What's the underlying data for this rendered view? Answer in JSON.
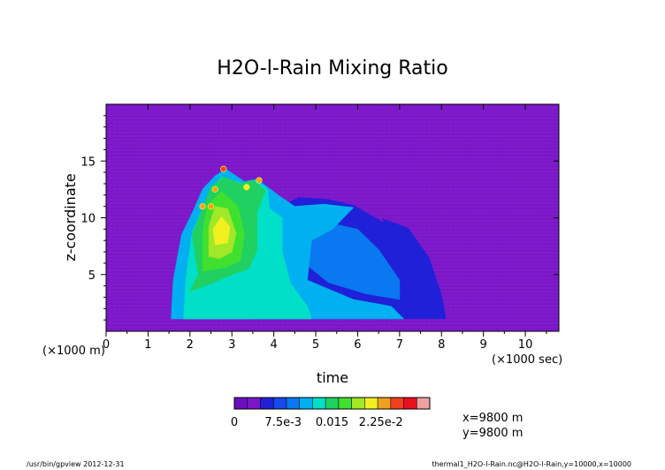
{
  "chart_data": {
    "type": "heatmap",
    "title": "H2O-l-Rain Mixing Ratio",
    "xlabel": "time",
    "ylabel": "z-coordinate",
    "x_unit_label": "(×1000 sec)",
    "y_unit_label": "(×1000 m)",
    "xlim": [
      0,
      10.8
    ],
    "ylim": [
      0,
      20
    ],
    "x_ticks": [
      {
        "v": 0,
        "t": "0"
      },
      {
        "v": 1,
        "t": "1"
      },
      {
        "v": 2,
        "t": "2"
      },
      {
        "v": 3,
        "t": "3"
      },
      {
        "v": 4,
        "t": "4"
      },
      {
        "v": 5,
        "t": "5"
      },
      {
        "v": 6,
        "t": "6"
      },
      {
        "v": 7,
        "t": "7"
      },
      {
        "v": 8,
        "t": "8"
      },
      {
        "v": 9,
        "t": "9"
      },
      {
        "v": 10,
        "t": "10"
      }
    ],
    "y_ticks": [
      {
        "v": 5,
        "t": "5"
      },
      {
        "v": 10,
        "t": "10"
      },
      {
        "v": 15,
        "t": "15"
      }
    ],
    "background_color": "#7a16c8",
    "colorbar": {
      "colors": [
        "#6a0fc0",
        "#7a16c8",
        "#2020d8",
        "#1848e8",
        "#0a78f0",
        "#00b0f0",
        "#00e0c8",
        "#20d060",
        "#40e030",
        "#a0e828",
        "#f0f020",
        "#f0a020",
        "#f04020",
        "#e81020",
        "#f0a0a0"
      ],
      "tick_labels": [
        "0",
        "7.5e-3",
        "0.015",
        "2.25e-2"
      ],
      "tick_positions": [
        0,
        0.0075,
        0.015,
        0.0225
      ],
      "range": [
        0,
        0.03
      ]
    },
    "regions": [
      {
        "level": 2,
        "color": "#2020d8",
        "points": [
          [
            3.5,
            1.1
          ],
          [
            3.9,
            10.5
          ],
          [
            4.6,
            11.8
          ],
          [
            5.3,
            11.6
          ],
          [
            5.9,
            11.1
          ],
          [
            6.6,
            9.6
          ],
          [
            7.2,
            7.7
          ],
          [
            7.7,
            5.3
          ],
          [
            8.1,
            1.1
          ]
        ]
      },
      {
        "level": 2,
        "color": "#2020d8",
        "points": [
          [
            6.6,
            9.9
          ],
          [
            7.2,
            9.1
          ],
          [
            7.7,
            6.5
          ],
          [
            8.0,
            3.2
          ],
          [
            8.1,
            1.2
          ],
          [
            7.6,
            3.0
          ],
          [
            7.1,
            6.4
          ],
          [
            6.7,
            8.8
          ]
        ]
      },
      {
        "level": 3,
        "color": "#0a78f0",
        "points": [
          [
            4.6,
            9.5
          ],
          [
            4.6,
            6.4
          ],
          [
            5.3,
            4.3
          ],
          [
            6.2,
            3.3
          ],
          [
            7.0,
            2.8
          ],
          [
            7.0,
            4.5
          ],
          [
            6.5,
            7.2
          ],
          [
            6.0,
            9.0
          ],
          [
            5.5,
            9.4
          ]
        ]
      },
      {
        "level": 4,
        "color": "#00b0f0",
        "points": [
          [
            1.55,
            1.1
          ],
          [
            1.6,
            4.5
          ],
          [
            1.8,
            8.5
          ],
          [
            2.1,
            10.8
          ],
          [
            2.3,
            12.5
          ],
          [
            2.6,
            13.7
          ],
          [
            2.85,
            14.3
          ],
          [
            3.3,
            13.2
          ],
          [
            3.6,
            13.4
          ],
          [
            3.85,
            12.7
          ],
          [
            4.1,
            12.0
          ],
          [
            4.5,
            11.0
          ],
          [
            5.2,
            11.2
          ],
          [
            5.9,
            10.9
          ],
          [
            5.4,
            9.0
          ],
          [
            4.9,
            8.0
          ],
          [
            4.8,
            4.5
          ],
          [
            5.9,
            2.8
          ],
          [
            6.8,
            2.2
          ],
          [
            7.1,
            1.1
          ]
        ]
      },
      {
        "level": 5,
        "color": "#00e0c8",
        "points": [
          [
            1.85,
            1.1
          ],
          [
            1.9,
            4.5
          ],
          [
            2.05,
            8.7
          ],
          [
            2.3,
            10.8
          ],
          [
            2.5,
            12.6
          ],
          [
            2.75,
            13.6
          ],
          [
            3.3,
            13.0
          ],
          [
            3.6,
            13.3
          ],
          [
            3.85,
            12.5
          ],
          [
            3.9,
            10.8
          ],
          [
            4.2,
            10.0
          ],
          [
            4.2,
            7.0
          ],
          [
            4.4,
            4.2
          ],
          [
            4.8,
            2.2
          ],
          [
            4.9,
            1.1
          ]
        ]
      },
      {
        "level": 6,
        "color": "#20d060",
        "points": [
          [
            2.0,
            3.5
          ],
          [
            2.2,
            5.0
          ],
          [
            2.05,
            8.5
          ],
          [
            2.3,
            10.8
          ],
          [
            2.5,
            12.7
          ],
          [
            2.8,
            13.6
          ],
          [
            3.2,
            13.0
          ],
          [
            3.5,
            13.3
          ],
          [
            3.8,
            12.4
          ],
          [
            3.6,
            10.5
          ],
          [
            3.6,
            7.2
          ],
          [
            3.4,
            5.5
          ],
          [
            3.0,
            5.0
          ],
          [
            2.5,
            4.2
          ]
        ]
      },
      {
        "level": 7,
        "color": "#40e030",
        "points": [
          [
            2.3,
            5.3
          ],
          [
            2.3,
            8.6
          ],
          [
            2.4,
            11.0
          ],
          [
            2.75,
            12.3
          ],
          [
            3.15,
            11.0
          ],
          [
            3.3,
            8.5
          ],
          [
            3.2,
            6.2
          ],
          [
            2.85,
            5.6
          ]
        ]
      },
      {
        "level": 8,
        "color": "#a0e828",
        "points": [
          [
            2.45,
            6.6
          ],
          [
            2.45,
            9.2
          ],
          [
            2.6,
            11.0
          ],
          [
            2.9,
            10.8
          ],
          [
            3.1,
            8.6
          ],
          [
            3.0,
            7.0
          ],
          [
            2.7,
            6.4
          ]
        ]
      },
      {
        "level": 9,
        "color": "#f0f020",
        "points": [
          [
            2.6,
            7.6
          ],
          [
            2.55,
            9.0
          ],
          [
            2.75,
            10.1
          ],
          [
            2.95,
            9.2
          ],
          [
            2.9,
            7.8
          ]
        ]
      }
    ],
    "hotspots": [
      {
        "x": 2.3,
        "y": 11.0,
        "color": "#f0a020"
      },
      {
        "x": 2.5,
        "y": 11.0,
        "color": "#f0a020"
      },
      {
        "x": 2.6,
        "y": 12.5,
        "color": "#f0a020"
      },
      {
        "x": 2.8,
        "y": 14.3,
        "color": "#f04020"
      },
      {
        "x": 3.65,
        "y": 13.3,
        "color": "#f0a020"
      },
      {
        "x": 3.35,
        "y": 12.7,
        "color": "#f0f020"
      }
    ],
    "annotations": [
      "x=9800 m",
      "y=9800 m"
    ]
  },
  "footer": {
    "left": "/usr/bin/gpview  2012-12-31",
    "right": "thermal1_H2O-l-Rain.nc@H2O-l-Rain,y=10000,x=10000"
  }
}
